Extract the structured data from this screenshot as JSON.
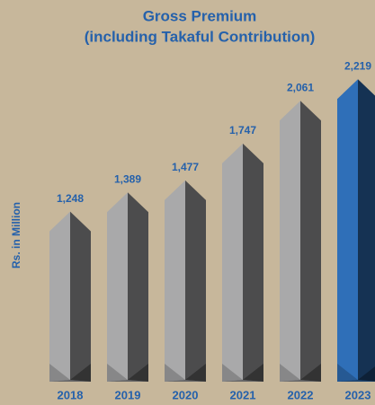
{
  "chart_data": {
    "type": "bar",
    "title": "Gross Premium",
    "subtitle": "(including Takaful Contribution)",
    "y_label": "Rs. in Million",
    "categories": [
      "2018",
      "2019",
      "2020",
      "2021",
      "2022",
      "2023"
    ],
    "values": [
      1248,
      1389,
      1477,
      1747,
      2061,
      2219
    ],
    "value_labels": [
      "1,248",
      "1,389",
      "1,477",
      "1,747",
      "2,061",
      "2,219"
    ],
    "colors": [
      "#a9a9aa",
      "#a9a9aa",
      "#a9a9aa",
      "#a9a9aa",
      "#a9a9aa",
      "#2f6fb8"
    ],
    "ylim": [
      0,
      2300
    ]
  }
}
